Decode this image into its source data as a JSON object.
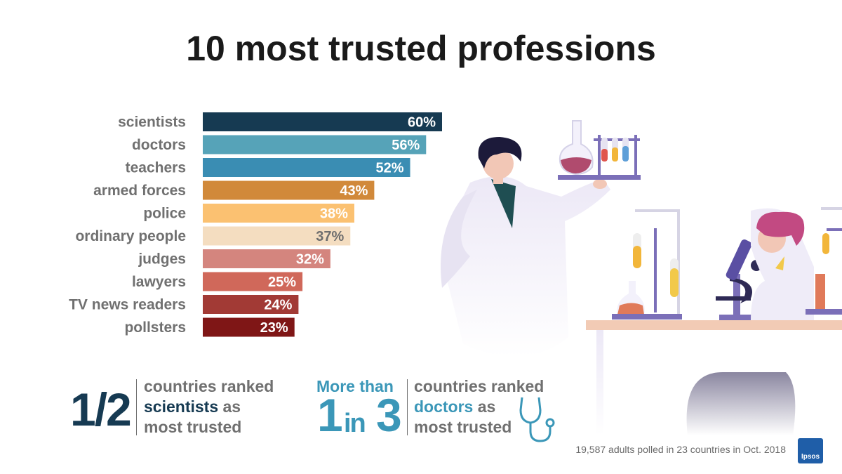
{
  "title": "10 most trusted professions",
  "chart_data": {
    "type": "bar",
    "orientation": "horizontal",
    "categories": [
      "scientists",
      "doctors",
      "teachers",
      "armed forces",
      "police",
      "ordinary people",
      "judges",
      "lawyers",
      "TV news readers",
      "pollsters"
    ],
    "values": [
      60,
      56,
      52,
      43,
      38,
      37,
      32,
      25,
      24,
      23
    ],
    "labels": [
      "60%",
      "56%",
      "52%",
      "43%",
      "38%",
      "37%",
      "32%",
      "25%",
      "24%",
      "23%"
    ],
    "colors": [
      "#163a52",
      "#56a3b8",
      "#3a8db3",
      "#d1893a",
      "#fbc171",
      "#f4ddc0",
      "#d4857e",
      "#d0685a",
      "#a23a35",
      "#7f1616"
    ],
    "label_colors": [
      "#ffffff",
      "#ffffff",
      "#ffffff",
      "#ffffff",
      "#ffffff",
      "#6e6e6e",
      "#ffffff",
      "#ffffff",
      "#ffffff",
      "#ffffff"
    ],
    "xlim": [
      0,
      60
    ],
    "grid": false,
    "legend": "none"
  },
  "stat1": {
    "big": "1/2",
    "line1": "countries ranked",
    "line2_highlight": "scientists",
    "line2_rest": " as",
    "line3": "most trusted"
  },
  "stat2": {
    "prefix": "More than",
    "big1": "1",
    "mid": "in",
    "big2": "3",
    "line1": "countries ranked",
    "line2_highlight": "doctors",
    "line2_rest": " as",
    "line3": "most trusted"
  },
  "source": "19,587 adults polled in 23 countries in Oct. 2018",
  "logo": "Ipsos",
  "icons": [
    "stethoscope-icon"
  ]
}
